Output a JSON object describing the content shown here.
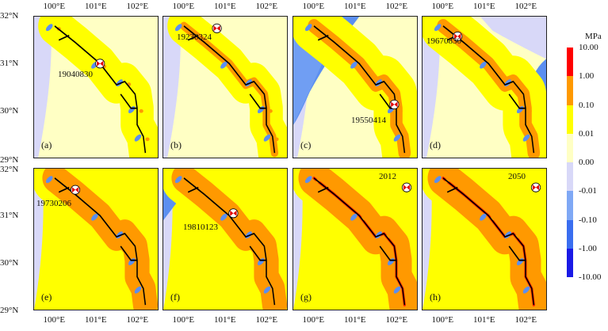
{
  "axes": {
    "lon_ticks": [
      "100°E",
      "101°E",
      "102°E"
    ],
    "lat_ticks": [
      "32°N",
      "31°N",
      "30°N",
      "29°N"
    ]
  },
  "panels": [
    {
      "label": "(a)",
      "event": "19040830",
      "stage": 0
    },
    {
      "label": "(b)",
      "event": "19230324",
      "stage": 1
    },
    {
      "label": "(c)",
      "event": "19550414",
      "stage": 2
    },
    {
      "label": "(d)",
      "event": "19670830",
      "stage": 3
    },
    {
      "label": "(e)",
      "event": "19730206",
      "stage": 4
    },
    {
      "label": "(f)",
      "event": "19810123",
      "stage": 5
    },
    {
      "label": "(g)",
      "event": "2012",
      "stage": 6
    },
    {
      "label": "(h)",
      "event": "2050",
      "stage": 7
    }
  ],
  "colorbar": {
    "unit": "MPa",
    "labels": [
      "10.00",
      "1.00",
      "0.10",
      "0.01",
      "0.00",
      "-0.01",
      "-0.10",
      "-1.00",
      "-10.00"
    ],
    "colors": [
      "#ff0000",
      "#ff9900",
      "#ffff00",
      "#ffffc4",
      "#d8d8f8",
      "#7fa8f5",
      "#3a6ef0",
      "#1a1ae6"
    ]
  }
}
